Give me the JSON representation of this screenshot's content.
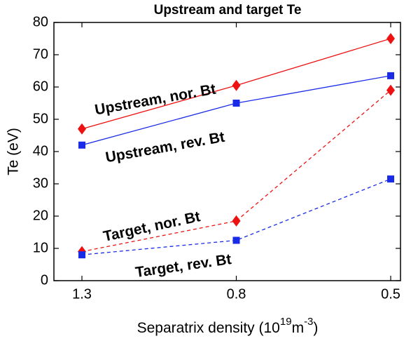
{
  "chart_data": {
    "type": "line",
    "title": "Upstream and target Te",
    "ylabel": "Te (eV)",
    "xlabel": [
      "Separatrix density (10",
      "19",
      "m",
      "-3",
      ")"
    ],
    "categories": [
      "1.3",
      "0.8",
      "0.5"
    ],
    "ylim": [
      0,
      80
    ],
    "yticks": [
      0,
      10,
      20,
      30,
      40,
      50,
      60,
      70,
      80
    ],
    "series": [
      {
        "name": "Upstream, nor. Bt",
        "color": "#ee1111",
        "marker": "diamond",
        "linestyle": "solid",
        "values": [
          47,
          60.5,
          75
        ]
      },
      {
        "name": "Upstream, rev. Bt",
        "color": "#1a2be8",
        "marker": "square",
        "linestyle": "solid",
        "values": [
          42,
          55,
          63.5
        ]
      },
      {
        "name": "Target, nor. Bt",
        "color": "#ee1111",
        "marker": "diamond",
        "linestyle": "dashed",
        "values": [
          9,
          18.5,
          59
        ]
      },
      {
        "name": "Target, rev. Bt",
        "color": "#1a2be8",
        "marker": "square",
        "linestyle": "dashed",
        "values": [
          8,
          12.5,
          31.5
        ]
      }
    ]
  }
}
